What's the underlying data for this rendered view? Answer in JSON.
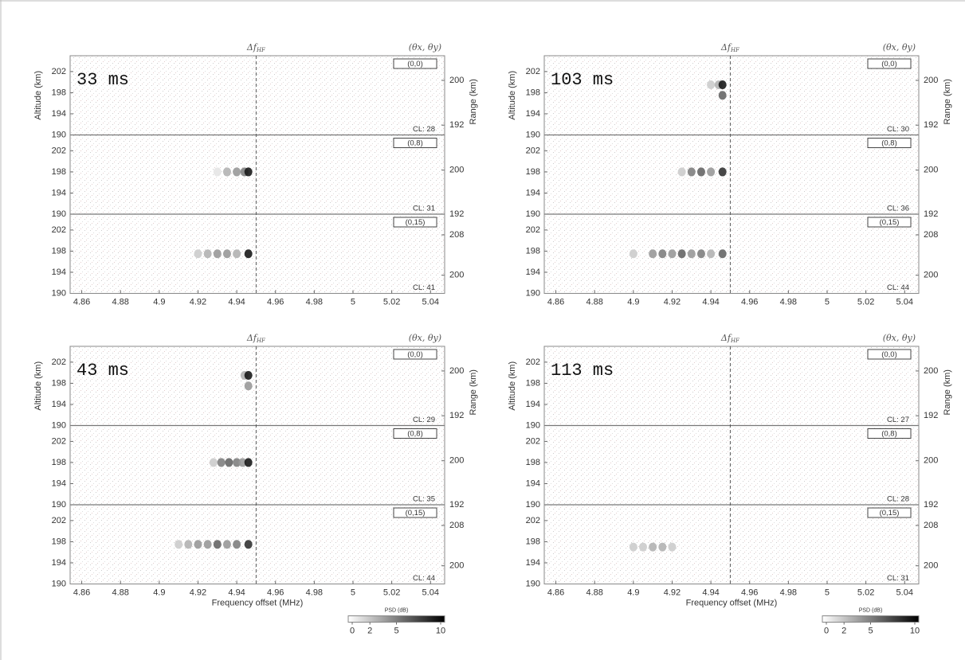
{
  "chart_data": [
    {
      "type": "heatmap",
      "title": "33 ms",
      "vline": 4.95,
      "vline_label": "Δf",
      "vline_label_sub": "HF",
      "beam_header": "(θx, θy)",
      "ylabel": "Altitude (km)",
      "y2label": "Range (km)",
      "xlim": [
        4.854,
        5.0473
      ],
      "xticks": [
        4.86,
        4.88,
        4.9,
        4.92,
        4.94,
        4.96,
        4.98,
        5,
        5.02,
        5.04
      ],
      "clim": [
        0,
        10
      ],
      "colormap": [
        "#ffffff",
        "#000000"
      ],
      "panels": [
        {
          "beam": "(0,0)",
          "cl": "CL: 28",
          "ylim": [
            190,
            205
          ],
          "yticks": [
            190,
            194,
            198,
            202
          ],
          "y2lim": [
            190.25,
            204.4
          ],
          "y2ticks": [
            192,
            200
          ],
          "x": [],
          "y": [],
          "values": []
        },
        {
          "beam": "(0,8)",
          "cl": "CL: 31",
          "ylim": [
            190,
            205
          ],
          "yticks": [
            190,
            194,
            198,
            202
          ],
          "y2lim": [
            192,
            206.4
          ],
          "y2ticks": [
            192,
            200
          ],
          "x": [
            4.93,
            4.935,
            4.94,
            4.944,
            4.946
          ],
          "y": [
            198,
            198,
            198,
            198,
            198
          ],
          "values": [
            1,
            3,
            4,
            5,
            9
          ]
        },
        {
          "beam": "(0,15)",
          "cl": "CL: 41",
          "ylim": [
            190,
            205
          ],
          "yticks": [
            190,
            194,
            198,
            202
          ],
          "y2lim": [
            196.4,
            212.1
          ],
          "y2ticks": [
            200,
            208
          ],
          "x": [
            4.92,
            4.925,
            4.93,
            4.935,
            4.94,
            4.946
          ],
          "y": [
            197.5,
            197.5,
            197.5,
            197.5,
            197.5,
            197.5
          ],
          "values": [
            2,
            3,
            4,
            4,
            3,
            9
          ]
        }
      ]
    },
    {
      "type": "heatmap",
      "title": "103 ms",
      "vline": 4.95,
      "vline_label": "Δf",
      "vline_label_sub": "HF",
      "beam_header": "(θx, θy)",
      "ylabel": "Altitude (km)",
      "y2label": "Range (km)",
      "xlim": [
        4.854,
        5.0473
      ],
      "xticks": [
        4.86,
        4.88,
        4.9,
        4.92,
        4.94,
        4.96,
        4.98,
        5,
        5.02,
        5.04
      ],
      "clim": [
        0,
        10
      ],
      "colormap": [
        "#ffffff",
        "#000000"
      ],
      "panels": [
        {
          "beam": "(0,0)",
          "cl": "CL: 30",
          "ylim": [
            190,
            205
          ],
          "yticks": [
            190,
            194,
            198,
            202
          ],
          "y2lim": [
            190.25,
            204.4
          ],
          "y2ticks": [
            192,
            200
          ],
          "x": [
            4.94,
            4.944,
            4.946,
            4.946
          ],
          "y": [
            199.5,
            199.5,
            199.5,
            197.5
          ],
          "values": [
            2,
            3,
            9,
            6
          ]
        },
        {
          "beam": "(0,8)",
          "cl": "CL: 36",
          "ylim": [
            190,
            205
          ],
          "yticks": [
            190,
            194,
            198,
            202
          ],
          "y2lim": [
            192,
            206.4
          ],
          "y2ticks": [
            192,
            200
          ],
          "x": [
            4.925,
            4.93,
            4.935,
            4.94,
            4.946
          ],
          "y": [
            198,
            198,
            198,
            198,
            198
          ],
          "values": [
            2,
            5,
            6,
            4,
            8
          ]
        },
        {
          "beam": "(0,15)",
          "cl": "CL: 44",
          "ylim": [
            190,
            205
          ],
          "yticks": [
            190,
            194,
            198,
            202
          ],
          "y2lim": [
            196.4,
            212.1
          ],
          "y2ticks": [
            200,
            208
          ],
          "x": [
            4.9,
            4.91,
            4.915,
            4.92,
            4.925,
            4.93,
            4.935,
            4.94,
            4.946
          ],
          "y": [
            197.5,
            197.5,
            197.5,
            197.5,
            197.5,
            197.5,
            197.5,
            197.5,
            197.5
          ],
          "values": [
            2,
            4,
            5,
            4,
            6,
            4,
            5,
            3,
            6
          ]
        }
      ]
    },
    {
      "type": "heatmap",
      "title": "43 ms",
      "vline": 4.95,
      "vline_label": "Δf",
      "vline_label_sub": "HF",
      "beam_header": "(θx, θy)",
      "ylabel": "Altitude (km)",
      "y2label": "Range (km)",
      "xlabel": "Frequency offset (MHz)",
      "xlim": [
        4.854,
        5.0473
      ],
      "xticks": [
        4.86,
        4.88,
        4.9,
        4.92,
        4.94,
        4.96,
        4.98,
        5,
        5.02,
        5.04
      ],
      "clim": [
        0,
        10
      ],
      "colormap": [
        "#ffffff",
        "#000000"
      ],
      "colorbar": {
        "label": "PSD (dB)",
        "ticks": [
          0,
          2,
          5,
          10
        ]
      },
      "panels": [
        {
          "beam": "(0,0)",
          "cl": "CL: 29",
          "ylim": [
            190,
            205
          ],
          "yticks": [
            190,
            194,
            198,
            202
          ],
          "y2lim": [
            190.25,
            204.4
          ],
          "y2ticks": [
            192,
            200
          ],
          "x": [
            4.944,
            4.946,
            4.946
          ],
          "y": [
            199.5,
            199.5,
            197.5
          ],
          "values": [
            3,
            9,
            4
          ]
        },
        {
          "beam": "(0,8)",
          "cl": "CL: 35",
          "ylim": [
            190,
            205
          ],
          "yticks": [
            190,
            194,
            198,
            202
          ],
          "y2lim": [
            192,
            206.4
          ],
          "y2ticks": [
            192,
            200
          ],
          "x": [
            4.928,
            4.932,
            4.936,
            4.94,
            4.943,
            4.946
          ],
          "y": [
            198,
            198,
            198,
            198,
            198,
            198
          ],
          "values": [
            2,
            5,
            6,
            5,
            4,
            9
          ]
        },
        {
          "beam": "(0,15)",
          "cl": "CL: 44",
          "ylim": [
            190,
            205
          ],
          "yticks": [
            190,
            194,
            198,
            202
          ],
          "y2lim": [
            196.4,
            212.1
          ],
          "y2ticks": [
            200,
            208
          ],
          "x": [
            4.91,
            4.915,
            4.92,
            4.925,
            4.93,
            4.935,
            4.94,
            4.946
          ],
          "y": [
            197.5,
            197.5,
            197.5,
            197.5,
            197.5,
            197.5,
            197.5,
            197.5
          ],
          "values": [
            2,
            3,
            4,
            4,
            6,
            4,
            5,
            8
          ]
        }
      ]
    },
    {
      "type": "heatmap",
      "title": "113 ms",
      "vline": 4.95,
      "vline_label": "Δf",
      "vline_label_sub": "HF",
      "beam_header": "(θx, θy)",
      "ylabel": "Altitude (km)",
      "y2label": "Range (km)",
      "xlabel": "Frequency offset (MHz)",
      "xlim": [
        4.854,
        5.0473
      ],
      "xticks": [
        4.86,
        4.88,
        4.9,
        4.92,
        4.94,
        4.96,
        4.98,
        5,
        5.02,
        5.04
      ],
      "clim": [
        0,
        10
      ],
      "colormap": [
        "#ffffff",
        "#000000"
      ],
      "colorbar": {
        "label": "PSD (dB)",
        "ticks": [
          0,
          2,
          5,
          10
        ]
      },
      "panels": [
        {
          "beam": "(0,0)",
          "cl": "CL: 27",
          "ylim": [
            190,
            205
          ],
          "yticks": [
            190,
            194,
            198,
            202
          ],
          "y2lim": [
            190.25,
            204.4
          ],
          "y2ticks": [
            192,
            200
          ],
          "x": [],
          "y": [],
          "values": []
        },
        {
          "beam": "(0,8)",
          "cl": "CL: 28",
          "ylim": [
            190,
            205
          ],
          "yticks": [
            190,
            194,
            198,
            202
          ],
          "y2lim": [
            192,
            206.4
          ],
          "y2ticks": [
            192,
            200
          ],
          "x": [],
          "y": [],
          "values": []
        },
        {
          "beam": "(0,15)",
          "cl": "CL: 31",
          "ylim": [
            190,
            205
          ],
          "yticks": [
            190,
            194,
            198,
            202
          ],
          "y2lim": [
            196.4,
            212.1
          ],
          "y2ticks": [
            200,
            208
          ],
          "x": [
            4.9,
            4.905,
            4.91,
            4.915,
            4.92
          ],
          "y": [
            197,
            197,
            197,
            197,
            197
          ],
          "values": [
            2,
            2,
            3,
            3,
            2
          ]
        }
      ]
    }
  ]
}
